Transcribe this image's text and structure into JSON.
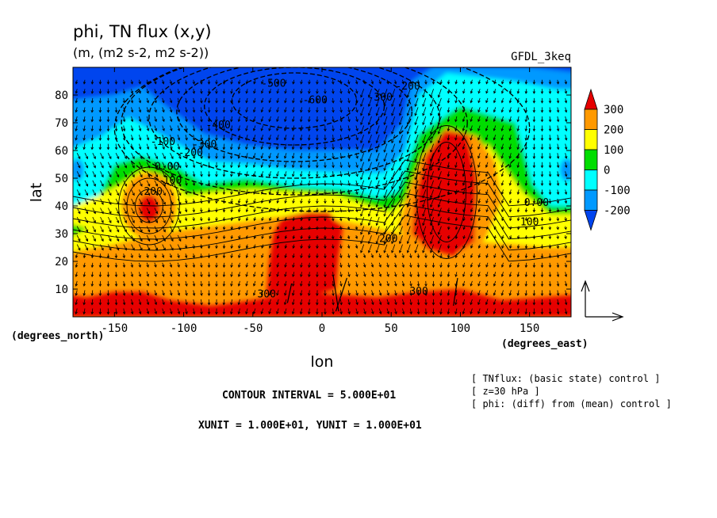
{
  "chart_data": {
    "type": "heatmap",
    "title": "phi, TN flux (x,y)",
    "subtitle": "(m, (m2 s-2, m2 s-2))",
    "model_label": "GFDL_3keq",
    "xlabel": "lon",
    "ylabel": "lat",
    "x_unit_label": "(degrees_east)",
    "y_unit_label": "(degrees_north)",
    "xlim": [
      -180,
      180
    ],
    "ylim": [
      0,
      90
    ],
    "x_ticks": [
      "-150",
      "-100",
      "-50",
      "0",
      "50",
      "100",
      "150"
    ],
    "y_ticks": [
      "10",
      "20",
      "30",
      "40",
      "50",
      "60",
      "70",
      "80"
    ],
    "colorbar": {
      "levels": [
        "300",
        "200",
        "100",
        "0",
        "-100",
        "-200"
      ],
      "colors": [
        "#e60000",
        "#ff9900",
        "#ffff00",
        "#00dd00",
        "#00ffff",
        "#0099ff",
        "#0044ee"
      ]
    },
    "contour_labels": [
      {
        "text": "-500",
        "lon": -35,
        "lat": 83
      },
      {
        "text": "-600",
        "lon": -5,
        "lat": 77
      },
      {
        "text": "-400",
        "lon": -75,
        "lat": 68
      },
      {
        "text": "-300",
        "lon": -85,
        "lat": 61
      },
      {
        "text": "-200",
        "lon": -95,
        "lat": 58
      },
      {
        "text": "-100",
        "lon": -115,
        "lat": 62
      },
      {
        "text": "0.00",
        "lon": -112,
        "lat": 53
      },
      {
        "text": "100",
        "lon": -108,
        "lat": 48
      },
      {
        "text": "200",
        "lon": -122,
        "lat": 44
      },
      {
        "text": "-300",
        "lon": 42,
        "lat": 78
      },
      {
        "text": "-200",
        "lon": 62,
        "lat": 82
      },
      {
        "text": "0.00",
        "lon": 155,
        "lat": 40
      },
      {
        "text": "100",
        "lon": 150,
        "lat": 33
      },
      {
        "text": "200",
        "lon": 48,
        "lat": 27
      },
      {
        "text": "300",
        "lon": -40,
        "lat": 7
      },
      {
        "text": "300",
        "lon": 70,
        "lat": 8
      }
    ],
    "annotations": {
      "contour_interval": "CONTOUR INTERVAL = 5.000E+01",
      "units": "XUNIT = 1.000E+01, YUNIT = 1.000E+01",
      "info_lines": [
        "[ TNflux: (basic state) control ]",
        "[ z=30 hPa ]",
        "[ phi: (diff) from (mean) control ]"
      ]
    }
  }
}
